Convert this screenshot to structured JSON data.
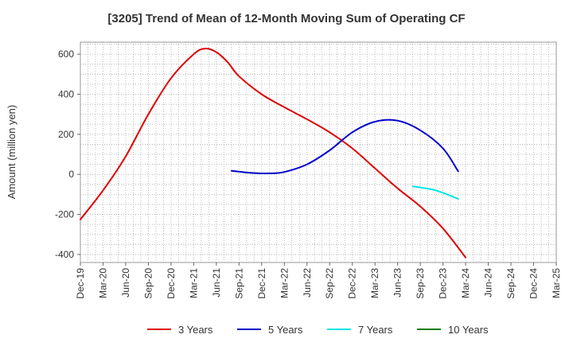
{
  "chart_data": {
    "type": "line",
    "title": "[3205]  Trend of Mean of 12-Month Moving Sum of Operating CF",
    "xlabel": "",
    "ylabel": "Amount (million yen)",
    "ylim": [
      -440,
      660
    ],
    "yticks": [
      -400,
      -200,
      0,
      200,
      400,
      600
    ],
    "grid": true,
    "legend_position": "bottom",
    "x_tick_labels": [
      "Dec-19",
      "Mar-20",
      "Jun-20",
      "Sep-20",
      "Dec-20",
      "Mar-21",
      "Jun-21",
      "Sep-21",
      "Dec-21",
      "Mar-22",
      "Jun-22",
      "Sep-22",
      "Dec-22",
      "Mar-23",
      "Jun-23",
      "Sep-23",
      "Dec-23",
      "Mar-24",
      "Jun-24",
      "Sep-24",
      "Dec-24",
      "Mar-25"
    ],
    "series": [
      {
        "name": "3 Years",
        "color": "#dd0000",
        "points": [
          [
            0,
            -225
          ],
          [
            1,
            -80
          ],
          [
            2,
            90
          ],
          [
            3,
            300
          ],
          [
            4,
            480
          ],
          [
            5,
            600
          ],
          [
            5.5,
            628
          ],
          [
            6,
            610
          ],
          [
            6.5,
            560
          ],
          [
            7,
            490
          ],
          [
            8,
            400
          ],
          [
            9,
            335
          ],
          [
            10,
            275
          ],
          [
            11,
            210
          ],
          [
            12,
            130
          ],
          [
            13,
            30
          ],
          [
            14,
            -70
          ],
          [
            15,
            -160
          ],
          [
            16,
            -270
          ],
          [
            17,
            -415
          ]
        ]
      },
      {
        "name": "5 Years",
        "color": "#0000cc",
        "points": [
          [
            6.67,
            18
          ],
          [
            7.5,
            8
          ],
          [
            8.33,
            5
          ],
          [
            9,
            12
          ],
          [
            10,
            50
          ],
          [
            11,
            120
          ],
          [
            12,
            210
          ],
          [
            13,
            263
          ],
          [
            14,
            268
          ],
          [
            15,
            220
          ],
          [
            16,
            130
          ],
          [
            16.67,
            15
          ]
        ]
      },
      {
        "name": "7 Years",
        "color": "#00e5e5",
        "points": [
          [
            14.67,
            -60
          ],
          [
            15.5,
            -75
          ],
          [
            16,
            -92
          ],
          [
            16.67,
            -122
          ]
        ]
      },
      {
        "name": "10 Years",
        "color": "#008000",
        "points": []
      }
    ]
  }
}
